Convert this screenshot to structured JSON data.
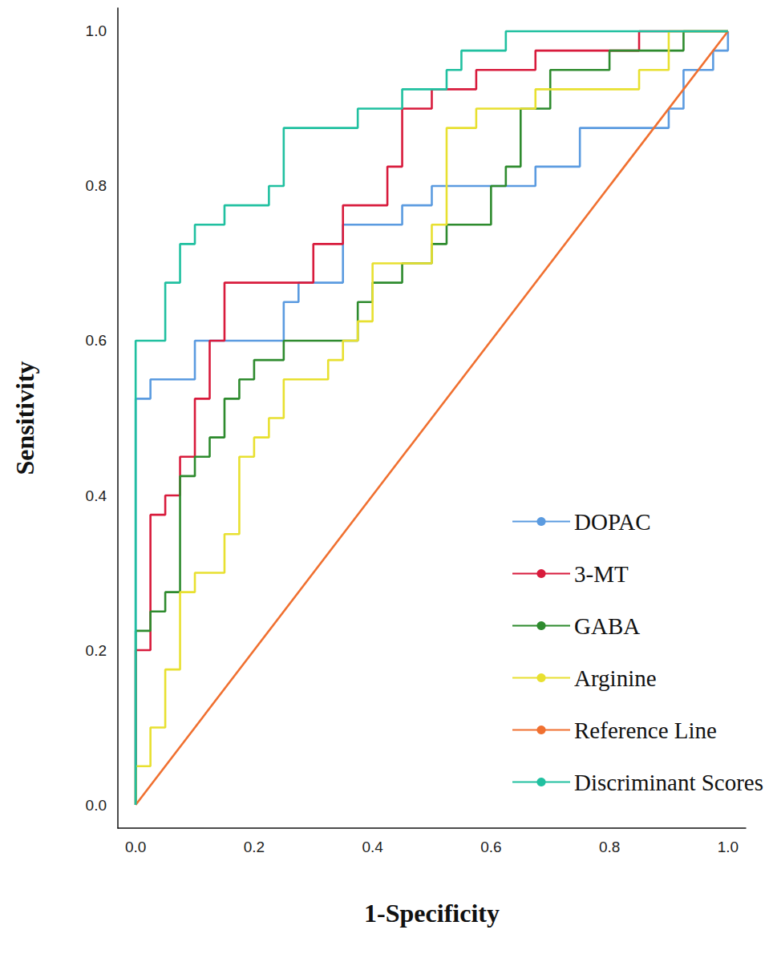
{
  "chart_data": {
    "type": "line",
    "x_label": "1-Specificity",
    "y_label": "Sensitivity",
    "xlim": [
      -0.03,
      1.03
    ],
    "ylim": [
      -0.03,
      1.03
    ],
    "xticks": [
      {
        "value": 0,
        "label": "0.0"
      },
      0.2,
      0.4,
      0.6,
      0.8,
      {
        "value": 1,
        "label": "1.0"
      }
    ],
    "yticks": [
      {
        "value": 0,
        "label": "0.0"
      },
      0.2,
      0.4,
      0.6,
      0.8,
      {
        "value": 1,
        "label": "1.0"
      }
    ],
    "grid": false,
    "legend": "lower right",
    "marker": "none",
    "line_style": "solid",
    "series": [
      {
        "name": "DOPAC",
        "color": "#5b9be0",
        "x": [
          0,
          0,
          0.025,
          0.025,
          0.1,
          0.1,
          0.25,
          0.25,
          0.275,
          0.275,
          0.35,
          0.35,
          0.45,
          0.45,
          0.5,
          0.5,
          0.675,
          0.675,
          0.75,
          0.75,
          0.9,
          0.9,
          0.925,
          0.925,
          0.975,
          0.975,
          1.0,
          1.0
        ],
        "values": [
          0,
          0.525,
          0.525,
          0.55,
          0.55,
          0.6,
          0.6,
          0.65,
          0.65,
          0.675,
          0.675,
          0.75,
          0.75,
          0.775,
          0.775,
          0.8,
          0.8,
          0.825,
          0.825,
          0.875,
          0.875,
          0.9,
          0.9,
          0.95,
          0.95,
          0.975,
          0.975,
          1.0
        ]
      },
      {
        "name": "3-MT",
        "color": "#d81b3c",
        "x": [
          0,
          0,
          0.025,
          0.025,
          0.05,
          0.05,
          0.075,
          0.075,
          0.1,
          0.1,
          0.125,
          0.125,
          0.15,
          0.15,
          0.3,
          0.3,
          0.35,
          0.35,
          0.425,
          0.425,
          0.45,
          0.45,
          0.5,
          0.5,
          0.575,
          0.575,
          0.675,
          0.675,
          0.85,
          0.85,
          1.0
        ],
        "values": [
          0,
          0.2,
          0.2,
          0.375,
          0.375,
          0.4,
          0.4,
          0.45,
          0.45,
          0.525,
          0.525,
          0.6,
          0.6,
          0.675,
          0.675,
          0.725,
          0.725,
          0.775,
          0.775,
          0.825,
          0.825,
          0.9,
          0.9,
          0.925,
          0.925,
          0.95,
          0.95,
          0.975,
          0.975,
          1.0,
          1.0
        ]
      },
      {
        "name": "GABA",
        "color": "#2e8b2e",
        "x": [
          0,
          0,
          0.025,
          0.025,
          0.05,
          0.05,
          0.075,
          0.075,
          0.1,
          0.1,
          0.125,
          0.125,
          0.15,
          0.15,
          0.175,
          0.175,
          0.2,
          0.2,
          0.25,
          0.25,
          0.375,
          0.375,
          0.4,
          0.4,
          0.45,
          0.45,
          0.5,
          0.5,
          0.525,
          0.525,
          0.6,
          0.6,
          0.625,
          0.625,
          0.65,
          0.65,
          0.7,
          0.7,
          0.8,
          0.8,
          0.925,
          0.925,
          1.0
        ],
        "values": [
          0,
          0.225,
          0.225,
          0.25,
          0.25,
          0.275,
          0.275,
          0.425,
          0.425,
          0.45,
          0.45,
          0.475,
          0.475,
          0.525,
          0.525,
          0.55,
          0.55,
          0.575,
          0.575,
          0.6,
          0.6,
          0.65,
          0.65,
          0.675,
          0.675,
          0.7,
          0.7,
          0.725,
          0.725,
          0.75,
          0.75,
          0.8,
          0.8,
          0.825,
          0.825,
          0.9,
          0.9,
          0.95,
          0.95,
          0.975,
          0.975,
          1.0,
          1.0
        ]
      },
      {
        "name": "Arginine",
        "color": "#e8e030",
        "x": [
          0,
          0,
          0.025,
          0.025,
          0.05,
          0.05,
          0.075,
          0.075,
          0.1,
          0.1,
          0.15,
          0.15,
          0.175,
          0.175,
          0.2,
          0.2,
          0.225,
          0.225,
          0.25,
          0.25,
          0.325,
          0.325,
          0.35,
          0.35,
          0.375,
          0.375,
          0.4,
          0.4,
          0.5,
          0.5,
          0.525,
          0.525,
          0.575,
          0.575,
          0.675,
          0.675,
          0.85,
          0.85,
          0.9,
          0.9,
          1.0
        ],
        "values": [
          0,
          0.05,
          0.05,
          0.1,
          0.1,
          0.175,
          0.175,
          0.275,
          0.275,
          0.3,
          0.3,
          0.35,
          0.35,
          0.45,
          0.45,
          0.475,
          0.475,
          0.5,
          0.5,
          0.55,
          0.55,
          0.575,
          0.575,
          0.6,
          0.6,
          0.625,
          0.625,
          0.7,
          0.7,
          0.75,
          0.75,
          0.875,
          0.875,
          0.9,
          0.9,
          0.925,
          0.925,
          0.95,
          0.95,
          1.0,
          1.0
        ]
      },
      {
        "name": "Reference Line",
        "color": "#f07030",
        "x": [
          0,
          1.0
        ],
        "values": [
          0,
          1.0
        ]
      },
      {
        "name": "Discriminant Scores",
        "color": "#20c0a0",
        "x": [
          0,
          0,
          0.05,
          0.05,
          0.075,
          0.075,
          0.1,
          0.1,
          0.15,
          0.15,
          0.225,
          0.225,
          0.25,
          0.25,
          0.375,
          0.375,
          0.45,
          0.45,
          0.525,
          0.525,
          0.55,
          0.55,
          0.625,
          0.625,
          1.0
        ],
        "values": [
          0,
          0.6,
          0.6,
          0.675,
          0.675,
          0.725,
          0.725,
          0.75,
          0.75,
          0.775,
          0.775,
          0.8,
          0.8,
          0.875,
          0.875,
          0.9,
          0.9,
          0.925,
          0.925,
          0.95,
          0.95,
          0.975,
          0.975,
          1.0,
          1.0
        ]
      }
    ]
  }
}
